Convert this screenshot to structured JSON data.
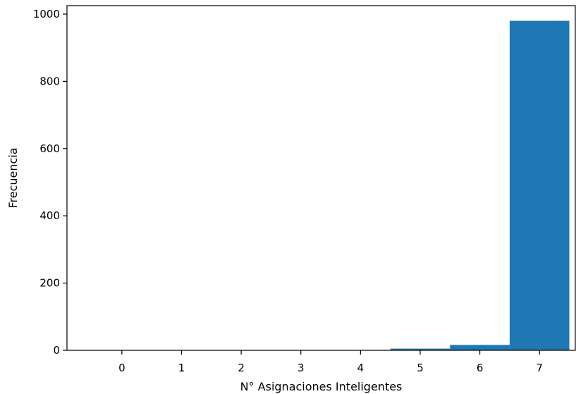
{
  "chart_data": {
    "type": "bar",
    "categories": [
      "0",
      "1",
      "2",
      "3",
      "4",
      "5",
      "6",
      "7"
    ],
    "values": [
      0,
      0,
      0,
      0,
      0,
      5,
      16,
      980
    ],
    "xlabel": "N° Asignaciones Inteligentes",
    "ylabel": "Frecuencia",
    "ylim": [
      0,
      1000
    ],
    "yticks": [
      0,
      200,
      400,
      600,
      800,
      1000
    ],
    "grid": false,
    "bar_color": "#1f77b4"
  }
}
